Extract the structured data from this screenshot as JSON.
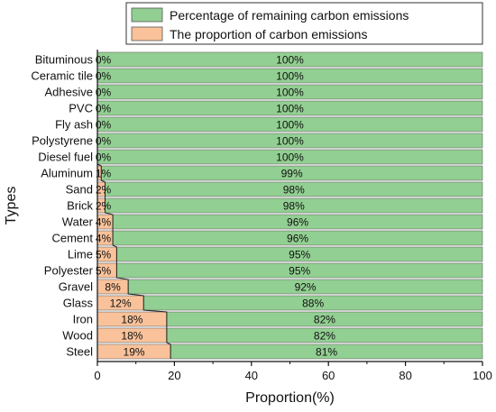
{
  "chart_data": {
    "type": "bar",
    "orientation": "horizontal",
    "stacked": true,
    "xlabel": "Proportion(%)",
    "ylabel": "Types",
    "xlim": [
      0,
      100
    ],
    "xticks": [
      "0",
      "20",
      "40",
      "60",
      "80",
      "100"
    ],
    "legend_position": "top",
    "categories": [
      "Bituminous",
      "Ceramic tile",
      "Adhesive",
      "PVC",
      "Fly ash",
      "Polystyrene",
      "Diesel fuel",
      "Aluminum",
      "Sand",
      "Brick",
      "Water",
      "Cement",
      "Lime",
      "Polyester",
      "Gravel",
      "Glass",
      "Iron",
      "Wood",
      "Steel"
    ],
    "series": [
      {
        "name": "The proportion of carbon emissions",
        "color": "#f9c29a",
        "values": [
          0,
          0,
          0,
          0,
          0,
          0,
          0,
          1,
          2,
          2,
          4,
          4,
          5,
          5,
          8,
          12,
          18,
          18,
          19
        ],
        "labels": [
          "0%",
          "0%",
          "0%",
          "0%",
          "0%",
          "0%",
          "0%",
          "1%",
          "2%",
          "2%",
          "4%",
          "4%",
          "5%",
          "5%",
          "8%",
          "12%",
          "18%",
          "18%",
          "19%"
        ]
      },
      {
        "name": "Percentage of remaining carbon emissions",
        "color": "#92cf92",
        "values": [
          100,
          100,
          100,
          100,
          100,
          100,
          100,
          99,
          98,
          98,
          96,
          96,
          95,
          95,
          92,
          88,
          82,
          82,
          81
        ],
        "labels": [
          "100%",
          "100%",
          "100%",
          "100%",
          "100%",
          "100%",
          "100%",
          "99%",
          "98%",
          "98%",
          "96%",
          "96%",
          "95%",
          "95%",
          "92%",
          "88%",
          "82%",
          "82%",
          "81%"
        ]
      }
    ],
    "legend": [
      {
        "name": "Percentage of remaining carbon emissions",
        "color": "#92cf92"
      },
      {
        "name": "The proportion of carbon emissions",
        "color": "#f9c29a"
      }
    ]
  }
}
